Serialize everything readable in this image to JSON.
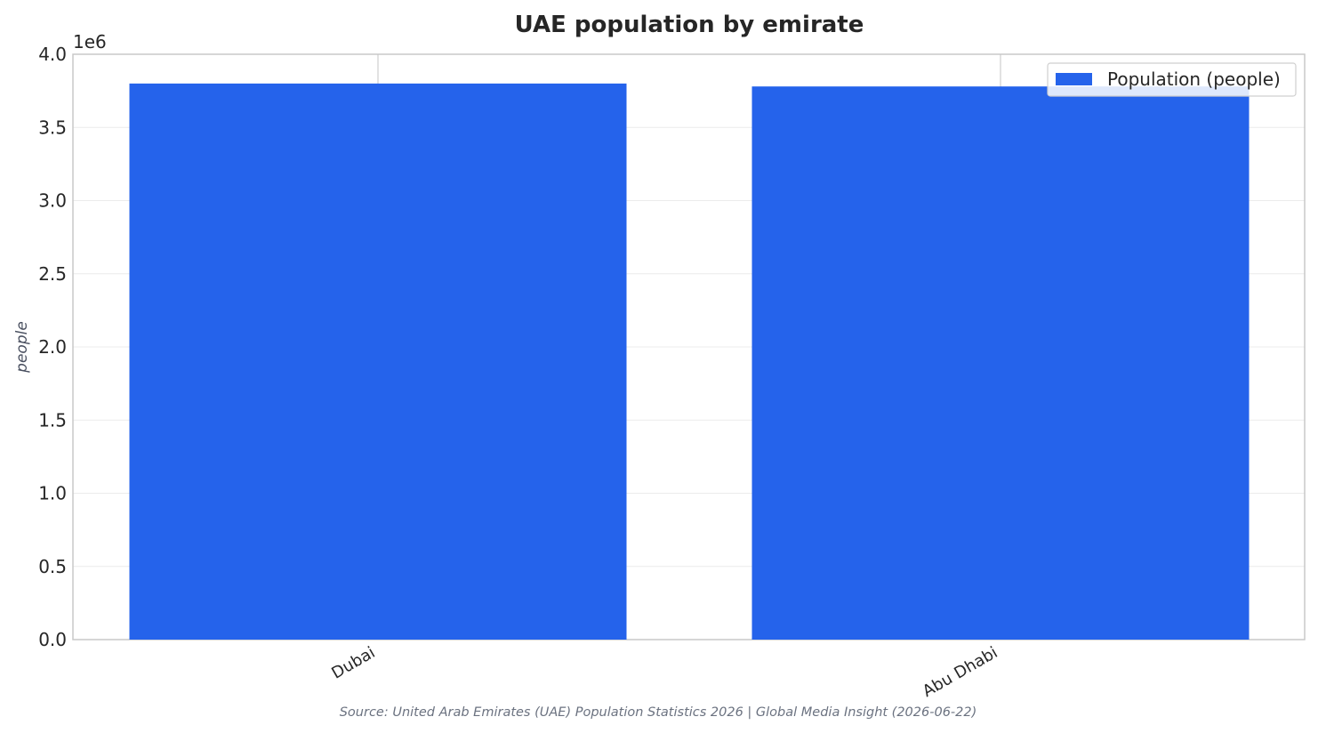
{
  "chart_data": {
    "type": "bar",
    "title": "UAE population by emirate",
    "categories": [
      "Dubai",
      "Abu Dhabi"
    ],
    "series": [
      {
        "name": "Population (people)",
        "values": [
          3800000,
          3780000
        ]
      }
    ],
    "xlabel": "",
    "ylabel": "people",
    "ylim": [
      0,
      4000000
    ],
    "yticks": [
      0,
      500000,
      1000000,
      1500000,
      2000000,
      2500000,
      3000000,
      3500000,
      4000000
    ],
    "ytick_labels": [
      "0.0",
      "0.5",
      "1.0",
      "1.5",
      "2.0",
      "2.5",
      "3.0",
      "3.5",
      "4.0"
    ],
    "y_multiplier_label": "1e6",
    "grid": true,
    "legend_position": "top-right",
    "bar_color": "#2563eb",
    "source": "Source: United Arab Emirates (UAE) Population Statistics 2026 | Global Media Insight (2026-06-22)"
  }
}
